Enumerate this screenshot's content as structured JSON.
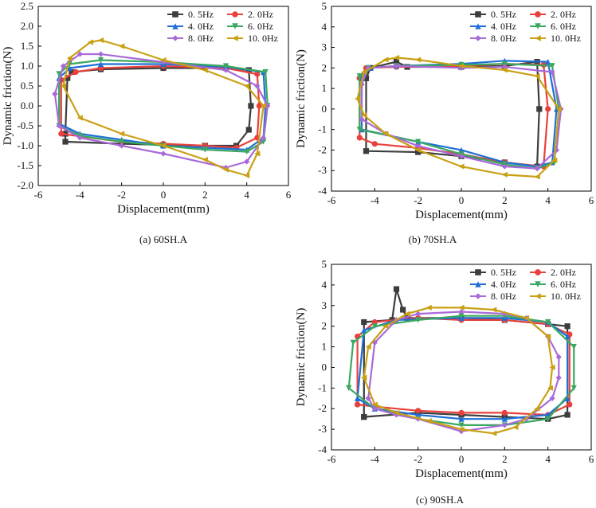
{
  "chart_data": [
    {
      "type": "line",
      "caption": "(a) 60SH.A",
      "xlabel": "Displacement(mm)",
      "ylabel": "Dynamic friction(N)",
      "xlim": [
        -6,
        6
      ],
      "ylim": [
        -2.0,
        2.5
      ],
      "xticks": [
        -6,
        -4,
        -2,
        0,
        2,
        4,
        6
      ],
      "yticks": [
        -2.0,
        -1.5,
        -1.0,
        -0.5,
        0.0,
        0.5,
        1.0,
        1.5,
        2.0,
        2.5
      ],
      "ytick_decimals": 1,
      "legend": [
        "0. 5Hz",
        "2. 0Hz",
        "4. 0Hz",
        "6. 0Hz",
        "8. 0Hz",
        "10. 0Hz"
      ],
      "series": [
        {
          "name": "0. 5Hz",
          "color": "#3d3d3d",
          "marker": "square",
          "x": [
            -4.6,
            -4.4,
            -3.0,
            0.0,
            3.0,
            4.1,
            4.2,
            4.1,
            3.5,
            2.0,
            0.0,
            -2.0,
            -4.7,
            -4.7,
            -4.6
          ],
          "y": [
            0.7,
            0.85,
            0.92,
            0.95,
            0.95,
            0.9,
            0.0,
            -0.6,
            -1.0,
            -1.0,
            -0.98,
            -0.95,
            -0.9,
            -0.7,
            0.7
          ]
        },
        {
          "name": "2. 0Hz",
          "color": "#e8413c",
          "marker": "circle",
          "x": [
            -4.9,
            -4.2,
            -3.0,
            0.0,
            3.0,
            4.5,
            4.6,
            4.5,
            3.5,
            2.0,
            0.0,
            -2.0,
            -4.9,
            -4.9
          ],
          "y": [
            0.65,
            0.85,
            0.95,
            1.0,
            0.95,
            0.8,
            0.0,
            -0.8,
            -1.05,
            -1.0,
            -0.95,
            -0.9,
            -0.7,
            0.65
          ]
        },
        {
          "name": "4. 0Hz",
          "color": "#1f6fd6",
          "marker": "triangle-up",
          "x": [
            -5.0,
            -4.5,
            -3.0,
            0.0,
            3.0,
            4.8,
            4.9,
            4.8,
            4.0,
            2.0,
            0.0,
            -2.0,
            -4.0,
            -5.0,
            -5.0
          ],
          "y": [
            0.7,
            0.95,
            1.05,
            1.05,
            0.98,
            0.85,
            0.0,
            -0.8,
            -1.1,
            -1.05,
            -1.0,
            -0.85,
            -0.7,
            -0.45,
            0.7
          ]
        },
        {
          "name": "6. 0Hz",
          "color": "#3aa860",
          "marker": "triangle-down",
          "x": [
            -5.0,
            -4.5,
            -3.0,
            0.0,
            3.0,
            4.9,
            5.0,
            4.8,
            4.0,
            2.0,
            0.0,
            -2.0,
            -4.0,
            -5.0,
            -5.0
          ],
          "y": [
            0.8,
            1.05,
            1.15,
            1.1,
            1.0,
            0.85,
            0.0,
            -0.9,
            -1.15,
            -1.1,
            -1.0,
            -0.9,
            -0.75,
            -0.5,
            0.8
          ]
        },
        {
          "name": "8. 0Hz",
          "color": "#a86ad8",
          "marker": "diamond",
          "x": [
            -5.2,
            -4.8,
            -4.0,
            -3.0,
            0.0,
            3.0,
            4.5,
            5.0,
            4.8,
            4.0,
            3.0,
            0.0,
            -2.0,
            -4.0,
            -5.0,
            -5.2
          ],
          "y": [
            0.3,
            1.0,
            1.3,
            1.3,
            1.1,
            0.9,
            0.5,
            0.0,
            -0.8,
            -1.4,
            -1.55,
            -1.2,
            -1.0,
            -0.8,
            -0.5,
            0.3
          ]
        },
        {
          "name": "10. 0Hz",
          "color": "#c9a014",
          "marker": "triangle-left",
          "x": [
            -4.8,
            -4.5,
            -3.5,
            -3.0,
            -2.0,
            0.0,
            2.0,
            4.0,
            4.8,
            4.5,
            4.0,
            3.0,
            2.0,
            0.0,
            -2.0,
            -4.0,
            -4.8
          ],
          "y": [
            0.5,
            1.2,
            1.6,
            1.65,
            1.5,
            1.15,
            0.9,
            0.5,
            0.0,
            -1.2,
            -1.75,
            -1.6,
            -1.35,
            -1.0,
            -0.7,
            -0.3,
            0.5
          ]
        }
      ]
    },
    {
      "type": "line",
      "caption": "(b) 70SH.A",
      "xlabel": "Displacement(mm)",
      "ylabel": "Dynamic friction(N)",
      "xlim": [
        -6,
        6
      ],
      "ylim": [
        -4,
        5
      ],
      "xticks": [
        -6,
        -4,
        -2,
        0,
        2,
        4,
        6
      ],
      "yticks": [
        -4,
        -3,
        -2,
        -1,
        0,
        1,
        2,
        3,
        4,
        5
      ],
      "ytick_decimals": 0,
      "legend": [
        "0. 5Hz",
        "2. 0Hz",
        "4. 0Hz",
        "6. 0Hz",
        "8. 0Hz",
        "10. 0Hz"
      ],
      "series": [
        {
          "name": "0. 5Hz",
          "color": "#3d3d3d",
          "marker": "square",
          "x": [
            -4.4,
            -4.2,
            -3.0,
            -2.5,
            0.0,
            2.0,
            3.5,
            3.6,
            3.5,
            2.0,
            0.0,
            -2.0,
            -4.4,
            -4.4
          ],
          "y": [
            1.5,
            2.0,
            2.3,
            2.05,
            2.05,
            2.1,
            2.3,
            0.0,
            -2.8,
            -2.6,
            -2.3,
            -2.1,
            -2.05,
            1.5
          ]
        },
        {
          "name": "2. 0Hz",
          "color": "#e8413c",
          "marker": "circle",
          "x": [
            -4.7,
            -4.4,
            -3.0,
            0.0,
            2.0,
            3.8,
            4.0,
            3.8,
            2.0,
            0.0,
            -2.0,
            -4.0,
            -4.7,
            -4.7
          ],
          "y": [
            1.5,
            2.0,
            2.05,
            2.1,
            2.2,
            2.15,
            0.0,
            -2.8,
            -2.6,
            -2.2,
            -1.9,
            -1.7,
            -1.4,
            1.5
          ]
        },
        {
          "name": "4. 0Hz",
          "color": "#1f6fd6",
          "marker": "triangle-up",
          "x": [
            -4.6,
            -4.2,
            -3.0,
            0.0,
            2.0,
            4.0,
            4.4,
            4.2,
            3.5,
            2.0,
            0.0,
            -2.0,
            -4.6,
            -4.6
          ],
          "y": [
            1.5,
            2.0,
            2.1,
            2.2,
            2.35,
            2.3,
            0.0,
            -2.6,
            -2.8,
            -2.6,
            -2.0,
            -1.6,
            -1.0,
            1.5
          ]
        },
        {
          "name": "6. 0Hz",
          "color": "#3aa860",
          "marker": "triangle-down",
          "x": [
            -4.7,
            -4.3,
            -3.0,
            0.0,
            2.0,
            4.2,
            4.5,
            4.3,
            3.5,
            2.0,
            0.0,
            -2.0,
            -4.7,
            -4.7
          ],
          "y": [
            1.6,
            2.0,
            2.1,
            2.15,
            2.2,
            2.1,
            0.0,
            -2.6,
            -2.9,
            -2.7,
            -2.2,
            -1.6,
            -1.0,
            1.6
          ]
        },
        {
          "name": "8. 0Hz",
          "color": "#a86ad8",
          "marker": "diamond",
          "x": [
            -4.6,
            -4.3,
            -3.0,
            0.0,
            2.0,
            4.2,
            4.6,
            4.4,
            3.5,
            2.0,
            0.0,
            -2.0,
            -3.5,
            -4.6,
            -4.6
          ],
          "y": [
            1.2,
            2.0,
            2.1,
            2.0,
            2.05,
            1.8,
            0.0,
            -2.0,
            -2.9,
            -2.8,
            -2.3,
            -1.8,
            -1.2,
            -0.5,
            1.2
          ]
        },
        {
          "name": "10. 0Hz",
          "color": "#c9a014",
          "marker": "triangle-left",
          "x": [
            -4.8,
            -4.5,
            -3.5,
            -3.0,
            -2.0,
            0.0,
            2.0,
            3.5,
            4.5,
            4.3,
            3.5,
            2.0,
            0.0,
            -2.0,
            -3.5,
            -4.5,
            -4.8
          ],
          "y": [
            0.5,
            1.8,
            2.4,
            2.5,
            2.4,
            2.1,
            1.9,
            1.6,
            0.0,
            -2.5,
            -3.3,
            -3.2,
            -2.8,
            -2.0,
            -1.2,
            -0.3,
            0.5
          ]
        }
      ]
    },
    {
      "type": "line",
      "caption": "(c) 90SH.A",
      "xlabel": "Displacement(mm)",
      "ylabel": "Dynamic friction(N)",
      "xlim": [
        -6,
        6
      ],
      "ylim": [
        -4,
        5
      ],
      "xticks": [
        -6,
        -4,
        -2,
        0,
        2,
        4,
        6
      ],
      "yticks": [
        -4,
        -3,
        -2,
        -1,
        0,
        1,
        2,
        3,
        4,
        5
      ],
      "ytick_decimals": 0,
      "legend": [
        "0. 5Hz",
        "2. 0Hz",
        "4. 0Hz",
        "6. 0Hz",
        "8. 0Hz",
        "10. 0Hz"
      ],
      "series": [
        {
          "name": "0. 5Hz",
          "color": "#3d3d3d",
          "marker": "square",
          "x": [
            -4.5,
            -4.5,
            -3.2,
            -3.0,
            -2.7,
            -2.5,
            0.0,
            2.0,
            4.0,
            4.9,
            4.9,
            4.0,
            2.0,
            0.0,
            -2.0,
            -4.5,
            -4.5
          ],
          "y": [
            -2.4,
            2.2,
            2.3,
            3.8,
            2.8,
            2.4,
            2.4,
            2.3,
            2.1,
            2.0,
            -2.3,
            -2.5,
            -2.4,
            -2.3,
            -2.2,
            -2.4,
            -2.4
          ]
        },
        {
          "name": "2. 0Hz",
          "color": "#e8413c",
          "marker": "circle",
          "x": [
            -4.8,
            -4.8,
            -4.0,
            -2.0,
            0.0,
            2.0,
            4.0,
            5.0,
            5.0,
            4.0,
            2.0,
            0.0,
            -2.0,
            -4.0,
            -4.8
          ],
          "y": [
            -1.8,
            1.5,
            2.2,
            2.4,
            2.3,
            2.3,
            2.1,
            1.6,
            -1.8,
            -2.3,
            -2.2,
            -2.2,
            -2.1,
            -1.9,
            -1.8
          ]
        },
        {
          "name": "4. 0Hz",
          "color": "#1f6fd6",
          "marker": "triangle-up",
          "x": [
            -4.8,
            -4.5,
            -3.0,
            0.0,
            2.0,
            4.0,
            4.9,
            4.9,
            4.0,
            2.0,
            0.0,
            -2.0,
            -4.0,
            -4.8
          ],
          "y": [
            -1.5,
            1.8,
            2.3,
            2.4,
            2.4,
            2.2,
            1.5,
            -1.5,
            -2.3,
            -2.5,
            -2.5,
            -2.3,
            -2.0,
            -1.5
          ]
        },
        {
          "name": "6. 0Hz",
          "color": "#3aa860",
          "marker": "triangle-down",
          "x": [
            -5.2,
            -5.0,
            -4.0,
            -2.0,
            0.0,
            2.0,
            4.0,
            5.2,
            5.2,
            4.0,
            2.0,
            0.0,
            -2.0,
            -4.0,
            -5.2
          ],
          "y": [
            -1.0,
            1.2,
            2.0,
            2.3,
            2.5,
            2.5,
            2.2,
            1.0,
            -1.0,
            -2.5,
            -2.8,
            -2.8,
            -2.5,
            -2.0,
            -1.0
          ]
        },
        {
          "name": "8. 0Hz",
          "color": "#a86ad8",
          "marker": "diamond",
          "x": [
            -4.3,
            -4.0,
            -3.0,
            -2.0,
            0.0,
            2.0,
            3.0,
            4.0,
            4.5,
            4.5,
            4.2,
            3.0,
            2.0,
            0.0,
            -2.0,
            -3.0,
            -4.0,
            -4.3
          ],
          "y": [
            -1.5,
            1.2,
            2.3,
            2.6,
            2.7,
            2.6,
            2.4,
            1.5,
            0.5,
            -0.5,
            -1.5,
            -2.5,
            -2.8,
            -3.1,
            -2.5,
            -2.3,
            -2.0,
            -1.5
          ]
        },
        {
          "name": "10. 0Hz",
          "color": "#c9a014",
          "marker": "triangle-left",
          "x": [
            -4.5,
            -4.3,
            -3.5,
            -2.5,
            -1.5,
            0.0,
            1.5,
            3.0,
            4.0,
            4.2,
            4.1,
            3.5,
            2.5,
            1.5,
            0.0,
            -1.5,
            -3.0,
            -4.0,
            -4.5
          ],
          "y": [
            -0.5,
            1.0,
            2.0,
            2.6,
            2.9,
            2.9,
            2.8,
            2.4,
            1.5,
            0.0,
            -1.0,
            -2.0,
            -2.9,
            -3.2,
            -3.0,
            -2.6,
            -2.2,
            -1.8,
            -0.5
          ]
        }
      ]
    }
  ]
}
